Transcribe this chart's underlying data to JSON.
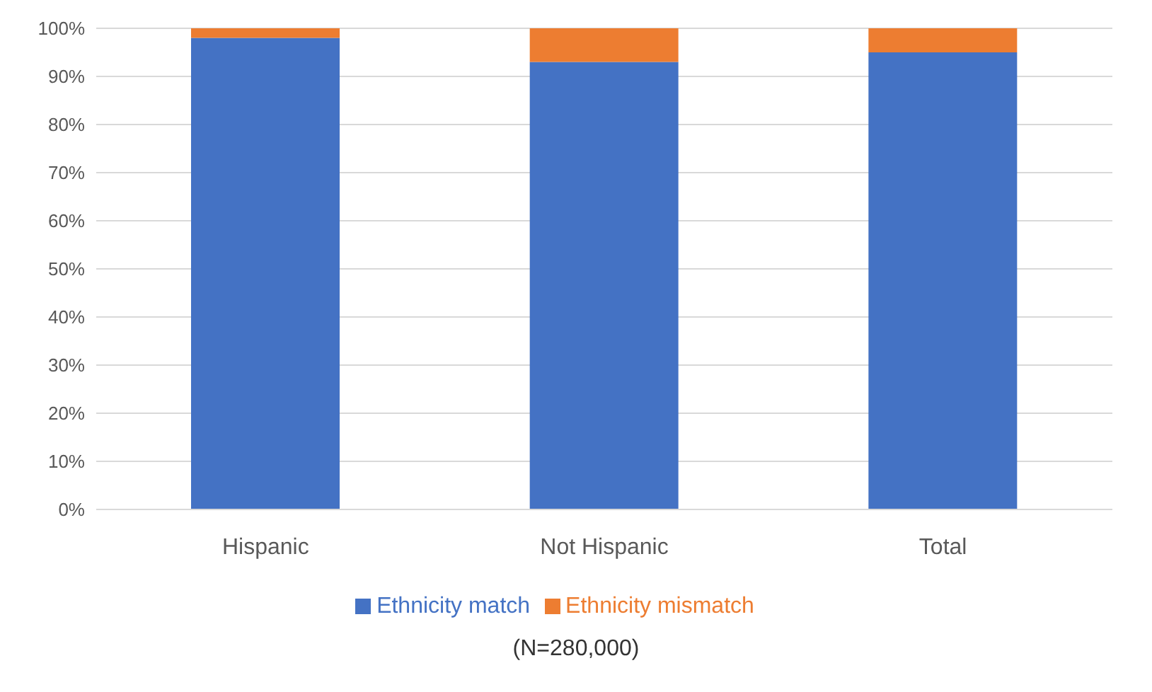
{
  "chart_data": {
    "type": "bar",
    "stacked": true,
    "categories": [
      "Hispanic",
      "Not Hispanic",
      "Total"
    ],
    "series": [
      {
        "name": "Ethnicity match",
        "color": "#4472c4",
        "values": [
          98,
          93,
          95
        ]
      },
      {
        "name": "Ethnicity mismatch",
        "color": "#ed7d31",
        "values": [
          2,
          7,
          5
        ]
      }
    ],
    "ylim": [
      0,
      100
    ],
    "yticks": [
      {
        "value": 0,
        "label": "0%"
      },
      {
        "value": 10,
        "label": "10%"
      },
      {
        "value": 20,
        "label": "20%"
      },
      {
        "value": 30,
        "label": "30%"
      },
      {
        "value": 40,
        "label": "40%"
      },
      {
        "value": 50,
        "label": "50%"
      },
      {
        "value": 60,
        "label": "60%"
      },
      {
        "value": 70,
        "label": "70%"
      },
      {
        "value": 80,
        "label": "80%"
      },
      {
        "value": 90,
        "label": "90%"
      },
      {
        "value": 100,
        "label": "100%"
      }
    ],
    "grid": "y",
    "legend": "bottom",
    "annotations": [
      "(N=280,000)"
    ]
  }
}
